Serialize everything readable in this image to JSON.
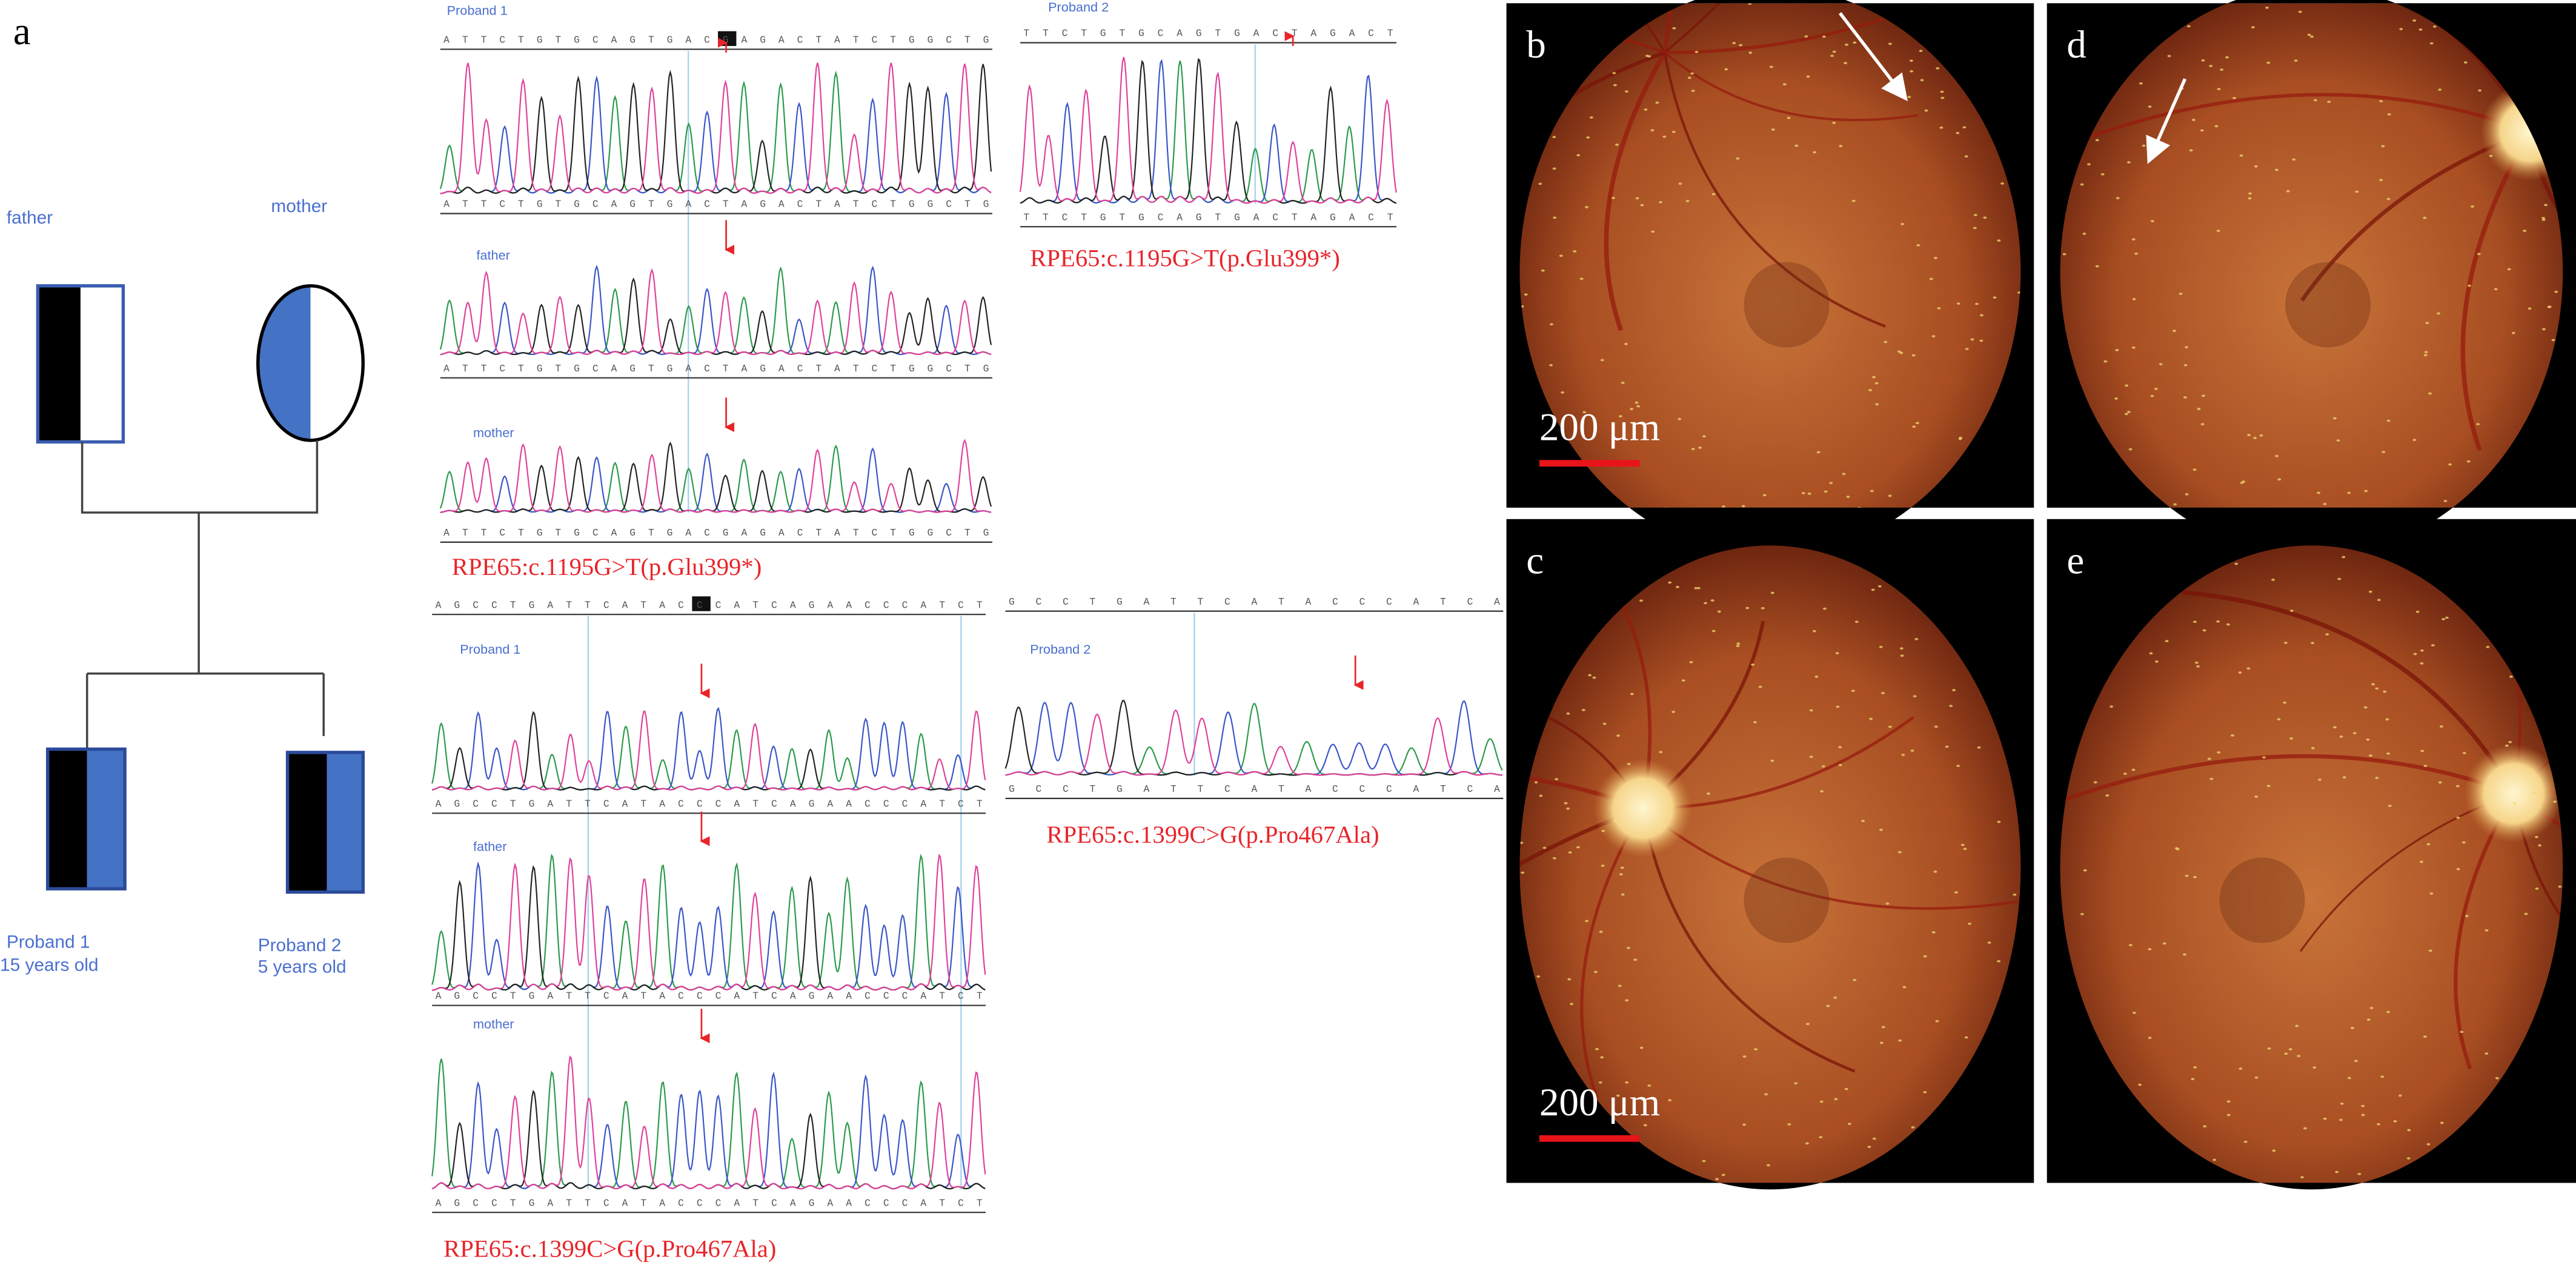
{
  "panel_labels": {
    "a": "a",
    "b": "b",
    "c": "c",
    "d": "d",
    "e": "e"
  },
  "pedigree": {
    "father": "father",
    "mother": "mother",
    "proband1": {
      "name": "Proband 1",
      "age": "15 years old"
    },
    "proband2": {
      "name": "Proband 2",
      "age": "5 years old"
    }
  },
  "sequencing": {
    "c1195_left": {
      "header": "ATTCTGTGCAGTGACGAGACTATCTGGCTG",
      "traces": [
        {
          "label": "Proband 1",
          "bases": "ATTCTGTGCAGTGACTAGACTATCTGGCTG"
        },
        {
          "label": "father",
          "bases": "ATTCTGTGCAGTGACTAGACTATCTGGCTG"
        },
        {
          "label": "mother",
          "bases": "ATTCTGTGCAGTGACGAGACTATCTGGCTG"
        }
      ],
      "variant": "RPE65:c.1195G>T(p.Glu399*)"
    },
    "c1195_right": {
      "header": "TTCTGTGCAGTGACTAGACT",
      "traces": [
        {
          "label": "Proband 2",
          "bases": "TTCTGTGCAGTGACTAGACT"
        }
      ],
      "variant": "RPE65:c.1195G>T(p.Glu399*)"
    },
    "c1399_left": {
      "header": "AGCCTGATTCATACCCATCAGAACCCATCT",
      "traces": [
        {
          "label": "Proband 1",
          "bases": "AGCCTGATTCATACCCATCAGAACCCATCT"
        },
        {
          "label": "father",
          "bases": "AGCCTGATTCATACCCATCAGAACCCATCT"
        },
        {
          "label": "mother",
          "bases": "AGCCTGATTCATACCCATCAGAACCCATCT"
        }
      ],
      "variant": "RPE65:c.1399C>G(p.Pro467Ala)"
    },
    "c1399_right": {
      "header": "GCCTGATTCATACCCATCA",
      "traces": [
        {
          "label": "Proband 2",
          "bases": "GCCTGATTCATACCCATCA"
        }
      ],
      "variant": "RPE65:c.1399C>G(p.Pro467Ala)"
    }
  },
  "scale_bars": {
    "b": "200 μm",
    "c": "200 μm"
  }
}
